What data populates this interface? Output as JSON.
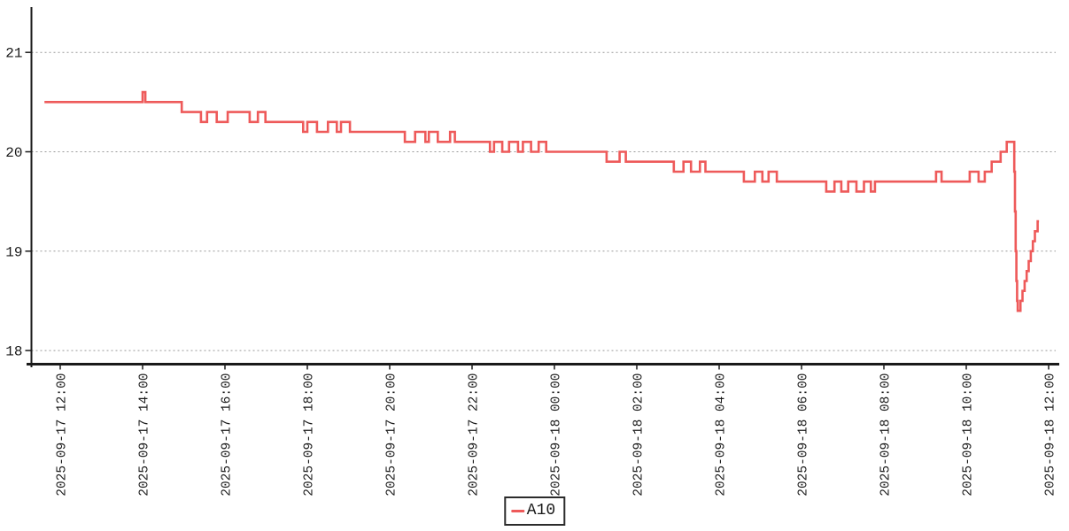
{
  "chart": {
    "background": "#ffffff",
    "axis_color": "#1a1a1a",
    "grid_color": "#999999",
    "label_color": "#1a1a1a",
    "legend": {
      "label": "A10"
    }
  },
  "chart_data": {
    "type": "line",
    "step": "after",
    "title": "",
    "xlabel": "",
    "ylabel": "",
    "grid": "horizontal-dotted",
    "legend_position": "bottom-center",
    "x_axis": {
      "type": "time",
      "tick_labels": [
        "2025-09-17 12:00",
        "2025-09-17 14:00",
        "2025-09-17 16:00",
        "2025-09-17 18:00",
        "2025-09-17 20:00",
        "2025-09-17 22:00",
        "2025-09-18 00:00",
        "2025-09-18 02:00",
        "2025-09-18 04:00",
        "2025-09-18 06:00",
        "2025-09-18 08:00",
        "2025-09-18 10:00",
        "2025-09-18 12:00"
      ]
    },
    "y_axis": {
      "ticks": [
        18,
        19,
        20,
        21
      ],
      "range": [
        17.85,
        21.45
      ]
    },
    "series": [
      {
        "name": "A10",
        "color": "#ee5a5a",
        "points": [
          [
            "2025-09-17 11:37",
            20.5
          ],
          [
            "2025-09-17 14:00",
            20.6
          ],
          [
            "2025-09-17 14:04",
            20.5
          ],
          [
            "2025-09-17 14:57",
            20.4
          ],
          [
            "2025-09-17 15:25",
            20.3
          ],
          [
            "2025-09-17 15:34",
            20.4
          ],
          [
            "2025-09-17 15:48",
            20.3
          ],
          [
            "2025-09-17 16:04",
            20.4
          ],
          [
            "2025-09-17 16:36",
            20.3
          ],
          [
            "2025-09-17 16:48",
            20.4
          ],
          [
            "2025-09-17 16:59",
            20.3
          ],
          [
            "2025-09-17 17:54",
            20.2
          ],
          [
            "2025-09-17 18:00",
            20.3
          ],
          [
            "2025-09-17 18:14",
            20.2
          ],
          [
            "2025-09-17 18:30",
            20.3
          ],
          [
            "2025-09-17 18:43",
            20.2
          ],
          [
            "2025-09-17 18:49",
            20.3
          ],
          [
            "2025-09-17 19:02",
            20.2
          ],
          [
            "2025-09-17 20:22",
            20.1
          ],
          [
            "2025-09-17 20:37",
            20.2
          ],
          [
            "2025-09-17 20:52",
            20.1
          ],
          [
            "2025-09-17 20:57",
            20.2
          ],
          [
            "2025-09-17 21:10",
            20.1
          ],
          [
            "2025-09-17 21:28",
            20.2
          ],
          [
            "2025-09-17 21:35",
            20.1
          ],
          [
            "2025-09-17 22:26",
            20.0
          ],
          [
            "2025-09-17 22:32",
            20.1
          ],
          [
            "2025-09-17 22:44",
            20.0
          ],
          [
            "2025-09-17 22:54",
            20.1
          ],
          [
            "2025-09-17 23:07",
            20.0
          ],
          [
            "2025-09-17 23:14",
            20.1
          ],
          [
            "2025-09-17 23:26",
            20.0
          ],
          [
            "2025-09-17 23:37",
            20.1
          ],
          [
            "2025-09-17 23:48",
            20.0
          ],
          [
            "2025-09-18 01:16",
            19.9
          ],
          [
            "2025-09-18 01:35",
            20.0
          ],
          [
            "2025-09-18 01:44",
            19.9
          ],
          [
            "2025-09-18 02:54",
            19.8
          ],
          [
            "2025-09-18 03:08",
            19.9
          ],
          [
            "2025-09-18 03:19",
            19.8
          ],
          [
            "2025-09-18 03:32",
            19.9
          ],
          [
            "2025-09-18 03:40",
            19.8
          ],
          [
            "2025-09-18 04:36",
            19.7
          ],
          [
            "2025-09-18 04:52",
            19.8
          ],
          [
            "2025-09-18 05:03",
            19.7
          ],
          [
            "2025-09-18 05:12",
            19.8
          ],
          [
            "2025-09-18 05:24",
            19.7
          ],
          [
            "2025-09-18 06:36",
            19.6
          ],
          [
            "2025-09-18 06:48",
            19.7
          ],
          [
            "2025-09-18 06:58",
            19.6
          ],
          [
            "2025-09-18 07:08",
            19.7
          ],
          [
            "2025-09-18 07:20",
            19.6
          ],
          [
            "2025-09-18 07:31",
            19.7
          ],
          [
            "2025-09-18 07:41",
            19.6
          ],
          [
            "2025-09-18 07:47",
            19.7
          ],
          [
            "2025-09-18 09:16",
            19.8
          ],
          [
            "2025-09-18 09:24",
            19.7
          ],
          [
            "2025-09-18 10:05",
            19.8
          ],
          [
            "2025-09-18 10:18",
            19.7
          ],
          [
            "2025-09-18 10:27",
            19.8
          ],
          [
            "2025-09-18 10:37",
            19.9
          ],
          [
            "2025-09-18 10:50",
            20.0
          ],
          [
            "2025-09-18 10:59",
            20.1
          ],
          [
            "2025-09-18 11:10",
            19.8
          ],
          [
            "2025-09-18 11:11",
            19.4
          ],
          [
            "2025-09-18 11:12",
            19.0
          ],
          [
            "2025-09-18 11:13",
            18.7
          ],
          [
            "2025-09-18 11:14",
            18.5
          ],
          [
            "2025-09-18 11:15",
            18.4
          ],
          [
            "2025-09-18 11:19",
            18.5
          ],
          [
            "2025-09-18 11:22",
            18.6
          ],
          [
            "2025-09-18 11:25",
            18.7
          ],
          [
            "2025-09-18 11:28",
            18.8
          ],
          [
            "2025-09-18 11:31",
            18.9
          ],
          [
            "2025-09-18 11:34",
            19.0
          ],
          [
            "2025-09-18 11:37",
            19.1
          ],
          [
            "2025-09-18 11:40",
            19.2
          ],
          [
            "2025-09-18 11:44",
            19.3
          ],
          [
            "2025-09-18 11:46",
            19.3
          ]
        ]
      }
    ]
  }
}
